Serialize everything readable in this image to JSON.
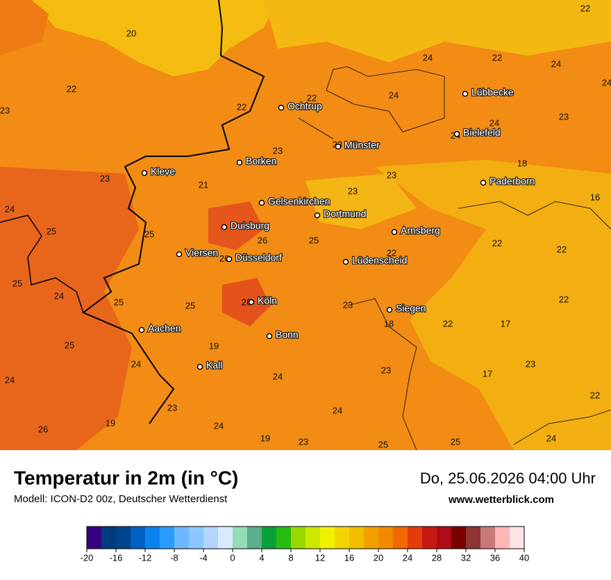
{
  "header": {
    "title": "Temperatur in 2m (in °C)",
    "subtitle": "Modell: ICON-D2 00z, Deutscher Wetterdienst",
    "date": "Do, 25.06.2026 04:00 Uhr",
    "website": "www.wetterblick.com"
  },
  "cities": [
    "Ochtrup",
    "Lübbecke",
    "Bielefeld",
    "Münster",
    "Borken",
    "Kleve",
    "Paderborn",
    "Gelsenkirchen",
    "Dortmund",
    "Duisburg",
    "Arnsberg",
    "Viersen",
    "Düsseldorf",
    "Lüdenscheid",
    "Köln",
    "Siegen",
    "Aachen",
    "Bonn",
    "Kall"
  ],
  "temperatures": [
    22,
    20,
    22,
    23,
    22,
    22,
    24,
    24,
    22,
    24,
    24,
    24,
    23,
    24,
    23,
    23,
    18,
    23,
    21,
    23,
    23,
    16,
    24,
    25,
    25,
    26,
    25,
    22,
    22,
    22,
    26,
    25,
    24,
    25,
    25,
    26,
    23,
    22,
    18,
    22,
    17,
    25,
    19,
    24,
    23,
    24,
    24,
    23,
    17,
    22,
    23,
    24,
    19,
    24,
    26,
    19,
    23,
    25,
    25,
    24
  ],
  "colorbar": {
    "ticks": [
      -20,
      -16,
      -12,
      -8,
      -4,
      0,
      4,
      8,
      12,
      16,
      20,
      24,
      28,
      32,
      36,
      40
    ],
    "colors": [
      "#35007f",
      "#003a7e",
      "#00448c",
      "#0060c0",
      "#0a84ec",
      "#2a9cff",
      "#6cb8ff",
      "#8cc6ff",
      "#b0d6ff",
      "#d8eaff",
      "#94dcb8",
      "#5cae8c",
      "#0aa03a",
      "#26bc14",
      "#98d800",
      "#cce800",
      "#f2f200",
      "#f2d400",
      "#f2be00",
      "#f2a000",
      "#f28a00",
      "#f06800",
      "#e43c0a",
      "#c81a14",
      "#ae0c16",
      "#7a0000",
      "#8e3434",
      "#c87878",
      "#ffb6b6",
      "#ffe2e6"
    ]
  }
}
